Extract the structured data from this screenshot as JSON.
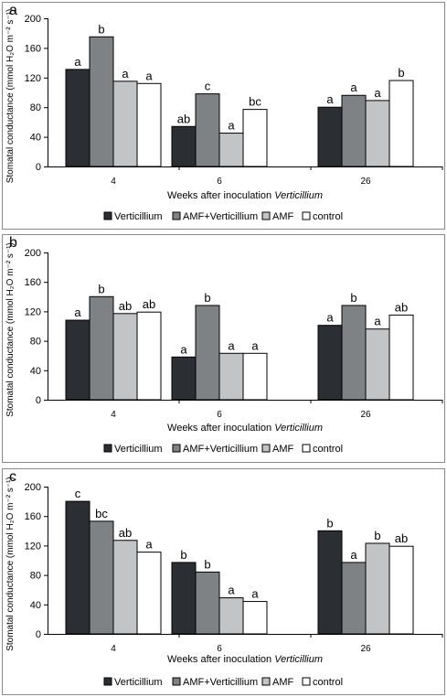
{
  "colors": {
    "verticillium": "#2b2f33",
    "amf_verticillium": "#7f8285",
    "amf": "#c2c4c6",
    "control": "#ffffff",
    "frame": "#8a8a8a"
  },
  "chart_data": [
    {
      "type": "bar",
      "panel_label": "a",
      "ylabel": "Stomatal conductance (mmol H₂O m⁻² s⁻¹)",
      "xlabel": "Weeks after inoculation ",
      "xlabel_italic": "Verticillium",
      "ylim": [
        0,
        200
      ],
      "yticks": [
        "0",
        "40",
        "80",
        "120",
        "160",
        "200"
      ],
      "categories": [
        "4",
        "6",
        "26"
      ],
      "legend_position": "bottom",
      "series": [
        {
          "name": "Verticillium",
          "color_key": "verticillium",
          "values": [
            131,
            54,
            80
          ],
          "labels": [
            "a",
            "ab",
            "a"
          ]
        },
        {
          "name": "AMF+Verticillium",
          "color_key": "amf_verticillium",
          "values": [
            175,
            98,
            96
          ],
          "labels": [
            "b",
            "c",
            "a"
          ]
        },
        {
          "name": "AMF",
          "color_key": "amf",
          "values": [
            115,
            45,
            89
          ],
          "labels": [
            "a",
            "a",
            "a"
          ]
        },
        {
          "name": "control",
          "color_key": "control",
          "values": [
            112,
            77,
            116
          ],
          "labels": [
            "a",
            "bc",
            "b"
          ]
        }
      ]
    },
    {
      "type": "bar",
      "panel_label": "b",
      "ylabel": "Stomatal conductance (mmol H₂O m⁻² s⁻¹)",
      "xlabel": "Weeks after inoculation ",
      "xlabel_italic": "Verticillium",
      "ylim": [
        0,
        200
      ],
      "yticks": [
        "0",
        "40",
        "80",
        "120",
        "160",
        "200"
      ],
      "categories": [
        "4",
        "6",
        "26"
      ],
      "legend_position": "bottom",
      "series": [
        {
          "name": "Verticillium",
          "color_key": "verticillium",
          "values": [
            108,
            58,
            101
          ],
          "labels": [
            "a",
            "a",
            "a"
          ]
        },
        {
          "name": "AMF+Verticillium",
          "color_key": "amf_verticillium",
          "values": [
            140,
            128,
            128
          ],
          "labels": [
            "b",
            "b",
            "b"
          ]
        },
        {
          "name": "AMF",
          "color_key": "amf",
          "values": [
            117,
            63,
            96
          ],
          "labels": [
            "ab",
            "a",
            "a"
          ]
        },
        {
          "name": "control",
          "color_key": "control",
          "values": [
            119,
            63,
            115
          ],
          "labels": [
            "ab",
            "a",
            "ab"
          ]
        }
      ]
    },
    {
      "type": "bar",
      "panel_label": "c",
      "ylabel": "Stomatal conductance (mmol H₂O m⁻² s⁻¹)",
      "xlabel": "Weeks after inoculation ",
      "xlabel_italic": "Verticillium",
      "ylim": [
        0,
        200
      ],
      "yticks": [
        "0",
        "40",
        "80",
        "120",
        "160",
        "200"
      ],
      "categories": [
        "4",
        "6",
        "26"
      ],
      "legend_position": "bottom",
      "series": [
        {
          "name": "Verticillium",
          "color_key": "verticillium",
          "values": [
            180,
            97,
            140
          ],
          "labels": [
            "c",
            "b",
            "b"
          ]
        },
        {
          "name": "AMF+Verticillium",
          "color_key": "amf_verticillium",
          "values": [
            153,
            84,
            97
          ],
          "labels": [
            "bc",
            "b",
            "a"
          ]
        },
        {
          "name": "AMF",
          "color_key": "amf",
          "values": [
            127,
            49,
            123
          ],
          "labels": [
            "ab",
            "a",
            "b"
          ]
        },
        {
          "name": "control",
          "color_key": "control",
          "values": [
            111,
            44,
            119
          ],
          "labels": [
            "a",
            "a",
            "ab"
          ]
        }
      ]
    }
  ]
}
